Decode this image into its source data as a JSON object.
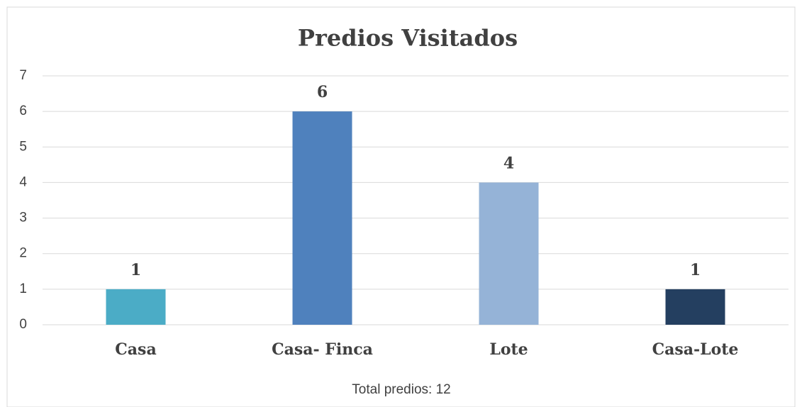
{
  "chart_data": {
    "type": "bar",
    "title": "Predios Visitados",
    "categories": [
      "Casa",
      "Casa- Finca",
      "Lote",
      "Casa-Lote"
    ],
    "values": [
      1,
      6,
      4,
      1
    ],
    "colors": [
      "#4bacc6",
      "#4f81bd",
      "#95b3d7",
      "#243f60"
    ],
    "ylim": [
      0,
      7
    ],
    "yticks": [
      0,
      1,
      2,
      3,
      4,
      5,
      6,
      7
    ],
    "grid": true,
    "annotation": "Total predios: 12"
  }
}
